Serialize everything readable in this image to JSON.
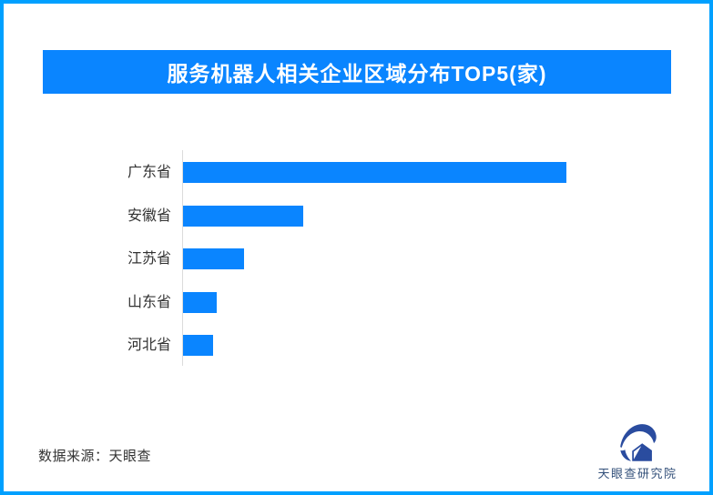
{
  "page": {
    "background": "#ffffff",
    "border_color": "#00a0ff"
  },
  "header": {
    "title": "服务机器人相关企业区域分布TOP5(家)",
    "bg_color": "#0a85ff",
    "text_color": "#ffffff"
  },
  "chart_data": {
    "type": "bar",
    "orientation": "horizontal",
    "title": "服务机器人相关企业区域分布TOP5(家)",
    "categories": [
      "广东省",
      "安徽省",
      "江苏省",
      "山东省",
      "河北省"
    ],
    "values": [
      421,
      132,
      67,
      37,
      33
    ],
    "values_are_relative_pixel_lengths": true,
    "value_labels_shown": false,
    "bar_color": "#0a85ff",
    "axis_line_color": "#dcdcdc",
    "label_color": "#333333",
    "grid": false,
    "legend": false
  },
  "footer": {
    "source": "数据来源：天眼查",
    "logo_title": "天眼查研究院",
    "logo_mark_color": "#2a4c9f",
    "logo_text_color": "#33507a"
  }
}
